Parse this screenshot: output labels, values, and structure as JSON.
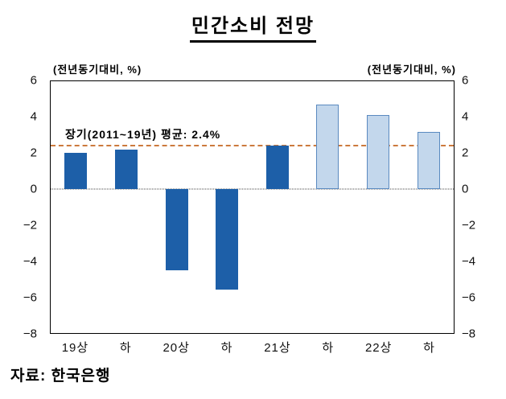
{
  "title": "민간소비 전망",
  "axis_unit_left": "(전년동기대비, %)",
  "axis_unit_right": "(전년동기대비, %)",
  "source": "자료: 한국은행",
  "colors": {
    "actual_bar": "#1d5fa8",
    "forecast_bar_fill": "#c3d7ec",
    "forecast_bar_border": "#5a8ac0",
    "average_line": "#cc7a3d",
    "zero_line": "#444444",
    "plot_border": "#000000"
  },
  "chart_data": {
    "type": "bar",
    "title": "민간소비 전망",
    "ylabel": "(전년동기대비, %)",
    "categories": [
      "19상",
      "하",
      "20상",
      "하",
      "21상",
      "하",
      "22상",
      "하"
    ],
    "values": [
      2.0,
      2.2,
      -4.5,
      -5.6,
      2.4,
      4.7,
      4.1,
      3.2
    ],
    "bar_styles": [
      "actual",
      "actual",
      "actual",
      "actual",
      "actual",
      "forecast",
      "forecast",
      "forecast"
    ],
    "ylim": [
      -8,
      6
    ],
    "yticks": [
      6,
      4,
      2,
      0,
      -2,
      -4,
      -6,
      -8
    ],
    "grid": "off",
    "legend": "none",
    "average_line": {
      "value": 2.4,
      "label": "장기(2011~19년) 평균: 2.4%"
    }
  }
}
